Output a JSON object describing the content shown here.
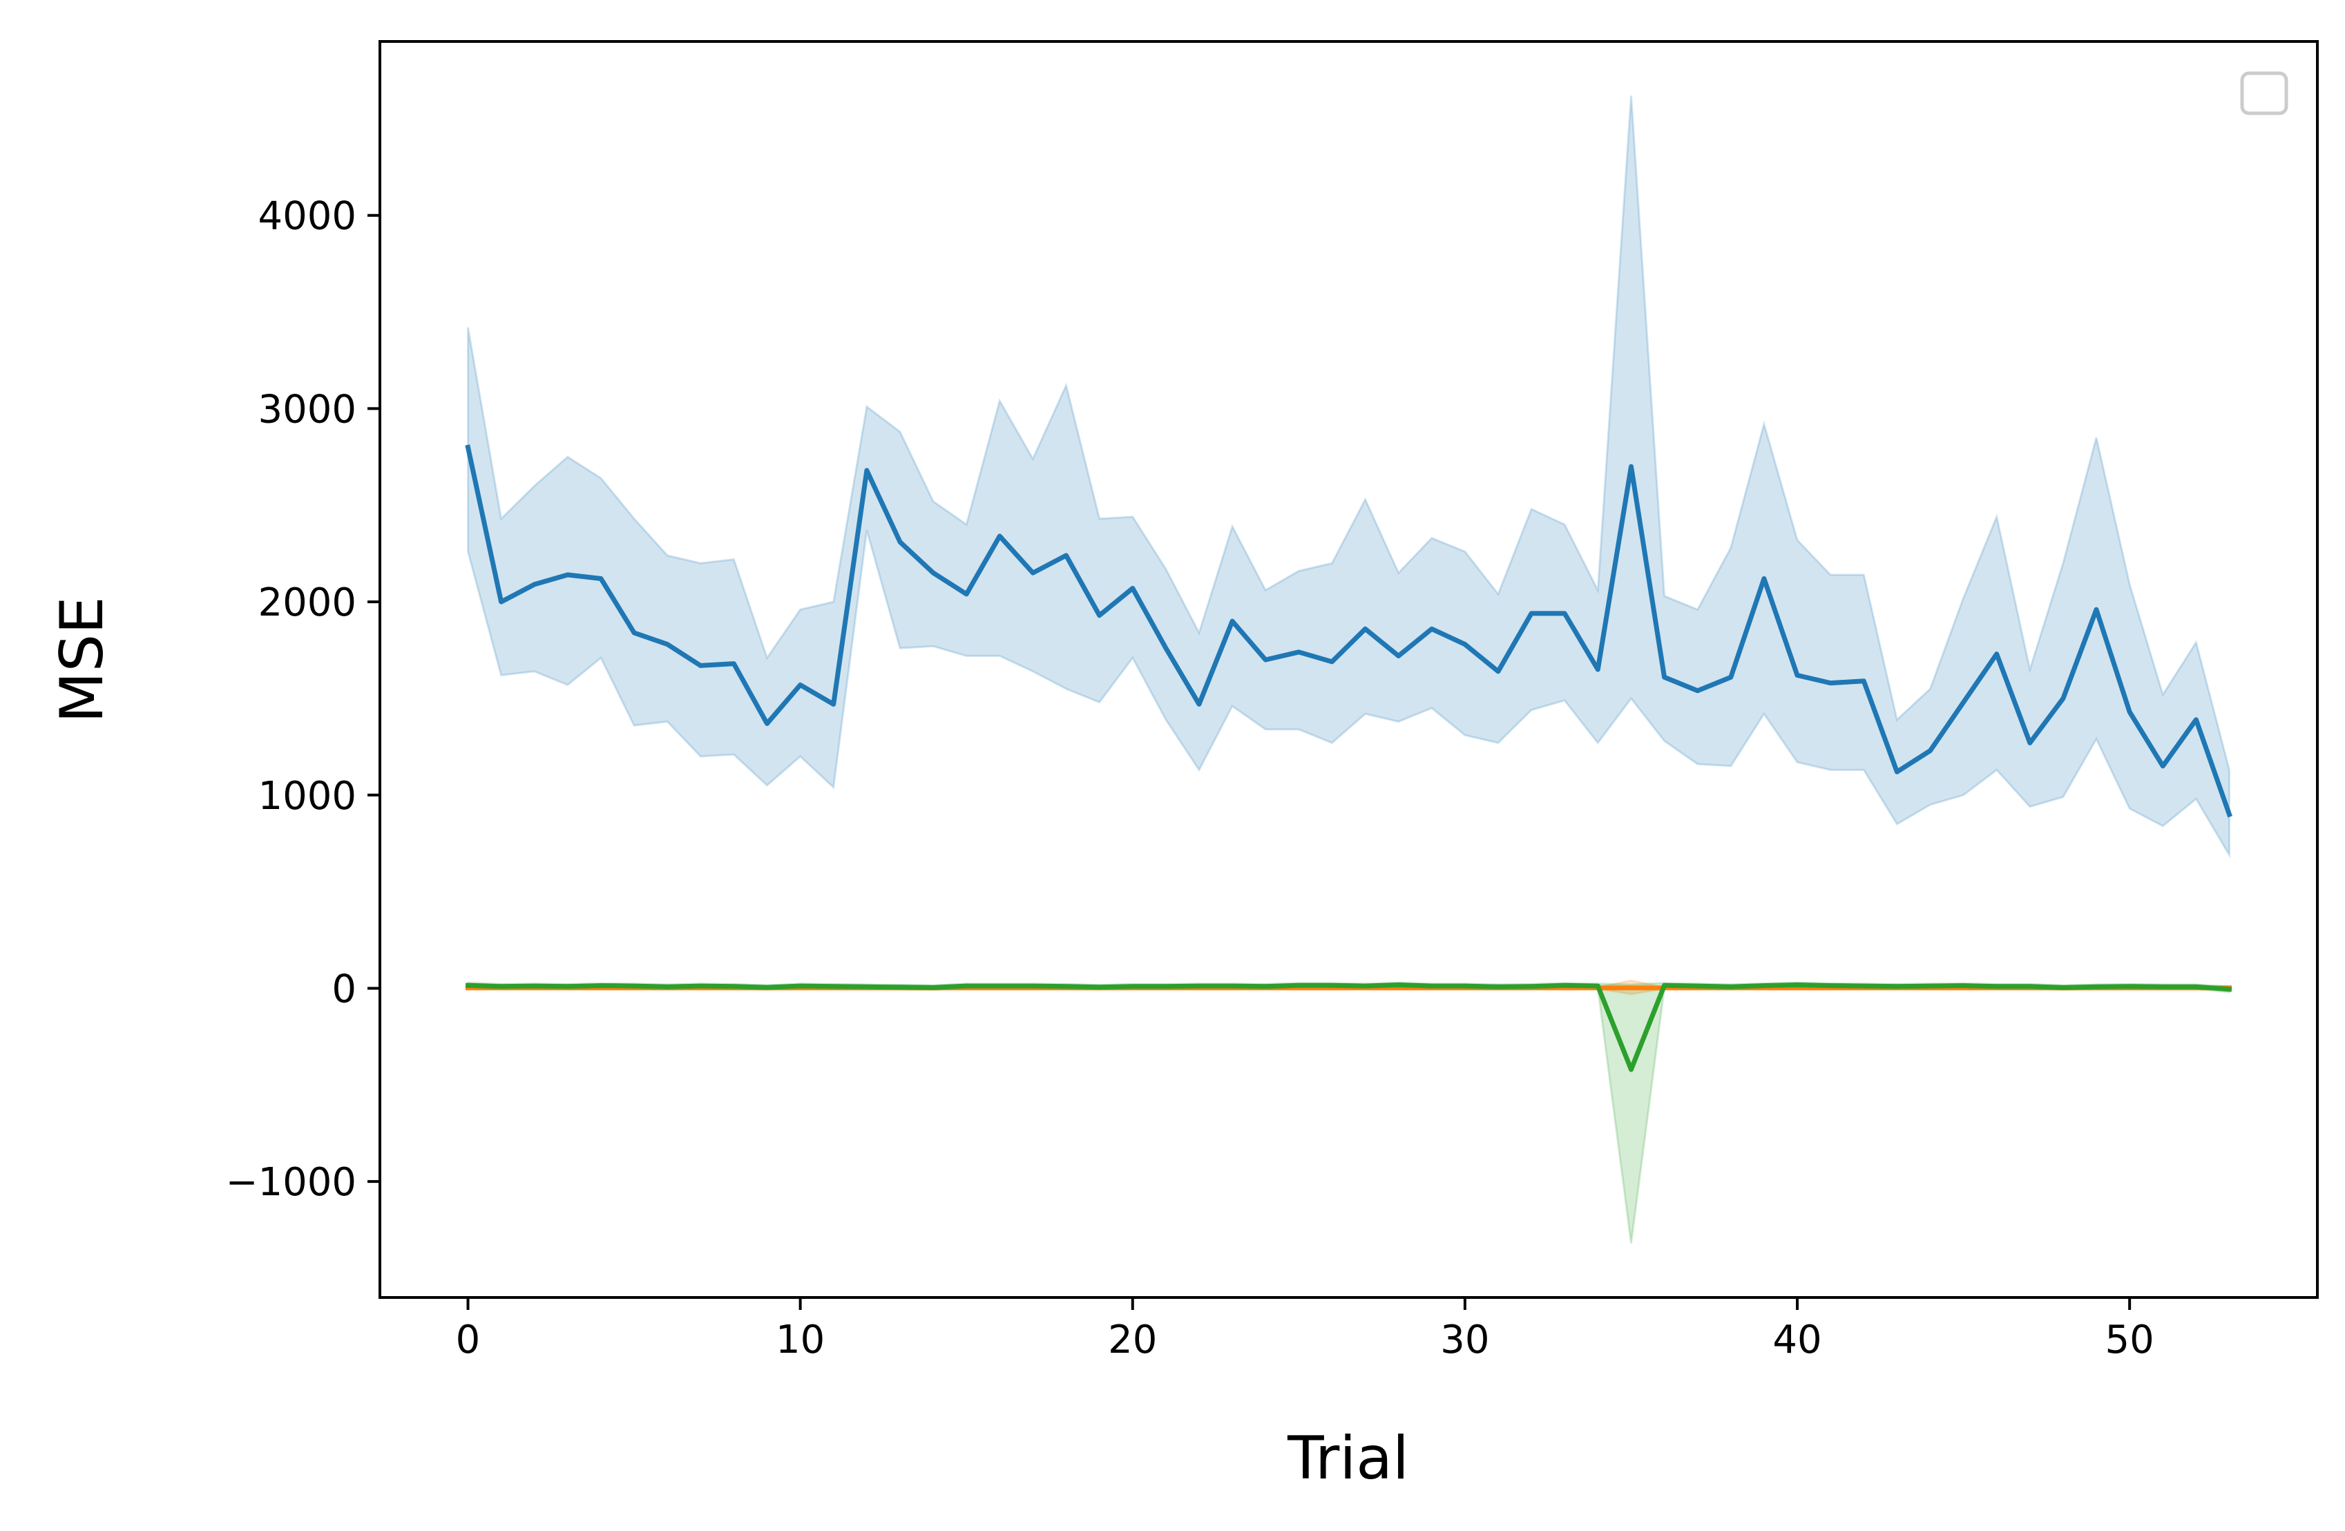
{
  "chart_data": {
    "type": "line",
    "xlabel": "Trial",
    "ylabel": "MSE",
    "xlim": [
      -2.65,
      55.65
    ],
    "ylim": [
      -1600,
      4900
    ],
    "xticks": [
      0,
      10,
      20,
      30,
      40,
      50
    ],
    "yticks": [
      -1000,
      0,
      1000,
      2000,
      3000,
      4000
    ],
    "ytick_labels": [
      "−1000",
      "0",
      "1000",
      "2000",
      "3000",
      "4000"
    ],
    "grid": false,
    "legend": "top-right, empty",
    "x": [
      0,
      1,
      2,
      3,
      4,
      5,
      6,
      7,
      8,
      9,
      10,
      11,
      12,
      13,
      14,
      15,
      16,
      17,
      18,
      19,
      20,
      21,
      22,
      23,
      24,
      25,
      26,
      27,
      28,
      29,
      30,
      31,
      32,
      33,
      34,
      35,
      36,
      37,
      38,
      39,
      40,
      41,
      42,
      43,
      44,
      45,
      46,
      47,
      48,
      49,
      50,
      51,
      52,
      53
    ],
    "series": [
      {
        "color": "#1f77b4",
        "fill_color": "#1f77b4",
        "values": [
          2800,
          2000,
          2090,
          2140,
          2120,
          1840,
          1780,
          1670,
          1680,
          1370,
          1570,
          1470,
          2680,
          2310,
          2150,
          2040,
          2340,
          2150,
          2240,
          1930,
          2070,
          1760,
          1470,
          1900,
          1700,
          1740,
          1690,
          1860,
          1720,
          1860,
          1780,
          1640,
          1940,
          1940,
          1650,
          2700,
          1610,
          1540,
          1610,
          2120,
          1620,
          1580,
          1590,
          1120,
          1230,
          1480,
          1730,
          1270,
          1500,
          1960,
          1430,
          1150,
          1390,
          900
        ],
        "upper": [
          3420,
          2430,
          2600,
          2750,
          2640,
          2430,
          2240,
          2200,
          2220,
          1710,
          1960,
          2000,
          3010,
          2880,
          2520,
          2400,
          3040,
          2740,
          3120,
          2430,
          2440,
          2170,
          1840,
          2390,
          2060,
          2160,
          2200,
          2530,
          2150,
          2330,
          2260,
          2040,
          2480,
          2400,
          2060,
          4620,
          2030,
          1960,
          2280,
          2920,
          2320,
          2140,
          2140,
          1390,
          1550,
          2020,
          2440,
          1650,
          2200,
          2850,
          2090,
          1520,
          1790,
          1130
        ],
        "lower": [
          2260,
          1620,
          1640,
          1570,
          1710,
          1360,
          1380,
          1200,
          1210,
          1050,
          1200,
          1040,
          2370,
          1760,
          1770,
          1720,
          1720,
          1640,
          1550,
          1480,
          1710,
          1390,
          1130,
          1460,
          1340,
          1340,
          1270,
          1420,
          1380,
          1450,
          1310,
          1270,
          1440,
          1490,
          1270,
          1500,
          1280,
          1160,
          1150,
          1420,
          1170,
          1130,
          1130,
          850,
          950,
          1000,
          1130,
          940,
          990,
          1290,
          930,
          840,
          980,
          690
        ]
      },
      {
        "color": "#ff7f0e",
        "fill_color": "#ff7f0e",
        "values": [
          2,
          2,
          2,
          2,
          2,
          2,
          2,
          2,
          2,
          2,
          2,
          2,
          2,
          2,
          2,
          2,
          2,
          2,
          2,
          2,
          2,
          2,
          2,
          2,
          2,
          2,
          2,
          2,
          2,
          2,
          2,
          2,
          2,
          2,
          2,
          2,
          2,
          2,
          2,
          2,
          2,
          2,
          2,
          2,
          2,
          2,
          2,
          2,
          2,
          2,
          2,
          2,
          2,
          2
        ],
        "upper": [
          6,
          6,
          6,
          6,
          6,
          6,
          6,
          6,
          6,
          6,
          6,
          6,
          6,
          6,
          6,
          6,
          6,
          6,
          6,
          6,
          6,
          6,
          6,
          6,
          6,
          6,
          6,
          6,
          6,
          6,
          6,
          6,
          6,
          6,
          6,
          40,
          6,
          6,
          6,
          6,
          6,
          6,
          6,
          6,
          6,
          6,
          6,
          6,
          6,
          6,
          6,
          6,
          6,
          6
        ],
        "lower": [
          -2,
          -2,
          -2,
          -2,
          -2,
          -2,
          -2,
          -2,
          -2,
          -2,
          -2,
          -2,
          -2,
          -2,
          -2,
          -2,
          -2,
          -2,
          -2,
          -2,
          -2,
          -2,
          -2,
          -2,
          -2,
          -2,
          -2,
          -2,
          -2,
          -2,
          -2,
          -2,
          -2,
          -2,
          -2,
          -30,
          -2,
          -2,
          -2,
          -2,
          -2,
          -2,
          -2,
          -2,
          -2,
          -2,
          -2,
          -2,
          -2,
          -2,
          -2,
          -2,
          -2,
          -2
        ]
      },
      {
        "color": "#2ca02c",
        "fill_color": "#2ca02c",
        "values": [
          15,
          10,
          12,
          10,
          14,
          12,
          8,
          12,
          10,
          5,
          12,
          10,
          8,
          6,
          4,
          12,
          12,
          12,
          10,
          6,
          10,
          10,
          12,
          12,
          10,
          15,
          15,
          12,
          18,
          12,
          12,
          8,
          10,
          15,
          12,
          -420,
          15,
          12,
          8,
          14,
          18,
          14,
          12,
          10,
          12,
          14,
          10,
          10,
          4,
          8,
          10,
          8,
          8,
          -5
        ],
        "upper": [
          30,
          22,
          24,
          22,
          26,
          24,
          20,
          24,
          22,
          16,
          24,
          22,
          20,
          18,
          16,
          24,
          24,
          24,
          22,
          18,
          22,
          22,
          24,
          24,
          22,
          28,
          28,
          24,
          30,
          24,
          24,
          20,
          22,
          28,
          24,
          20,
          28,
          24,
          20,
          26,
          30,
          26,
          24,
          22,
          24,
          26,
          22,
          22,
          16,
          20,
          22,
          20,
          20,
          10
        ],
        "lower": [
          0,
          -2,
          0,
          -2,
          2,
          0,
          -4,
          0,
          -2,
          -6,
          0,
          -2,
          -4,
          -6,
          -8,
          0,
          0,
          0,
          -2,
          -6,
          -2,
          -2,
          0,
          0,
          -2,
          2,
          2,
          0,
          6,
          0,
          0,
          -4,
          -2,
          2,
          0,
          -1320,
          2,
          0,
          -4,
          2,
          6,
          2,
          0,
          -2,
          0,
          2,
          -2,
          -2,
          -8,
          -4,
          -2,
          -4,
          -4,
          -20
        ]
      }
    ]
  }
}
